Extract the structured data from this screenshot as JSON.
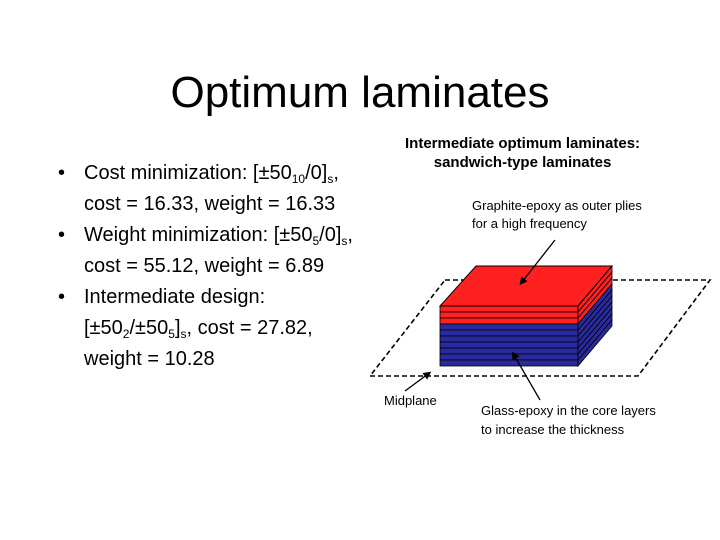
{
  "slide": {
    "title": "Optimum laminates"
  },
  "bullets": {
    "b1": {
      "a": "Cost minimization: [±50",
      "b": "10",
      "c": "/0]",
      "d": "s",
      "e": ",",
      "f": "cost = 16.33, weight = 16.33"
    },
    "b2": {
      "a": "Weight minimization: [±50",
      "b": "5",
      "c": "/0]",
      "d": "s",
      "e": ",",
      "f": "cost = 55.12, weight = 6.89"
    },
    "b3": {
      "a": "Intermediate design:",
      "b": "[±50",
      "c": "2",
      "d": "/±50",
      "e": "5",
      "f": "]",
      "g": "s",
      "h": ", cost = 27.82,",
      "i": "weight = 10.28"
    }
  },
  "figure": {
    "heading_line1": "Intermediate optimum laminates:",
    "heading_line2": "sandwich-type laminates",
    "outer_note_line1": "Graphite-epoxy as outer plies",
    "outer_note_line2": "for a high frequency",
    "midplane_label": "Midplane",
    "core_note_line1": "Glass-epoxy in the core layers",
    "core_note_line2": "to increase the thickness",
    "colors": {
      "graphite": "#ff2020",
      "glass": "#2a2aa0",
      "bullet_accent": "#ff0000"
    }
  }
}
